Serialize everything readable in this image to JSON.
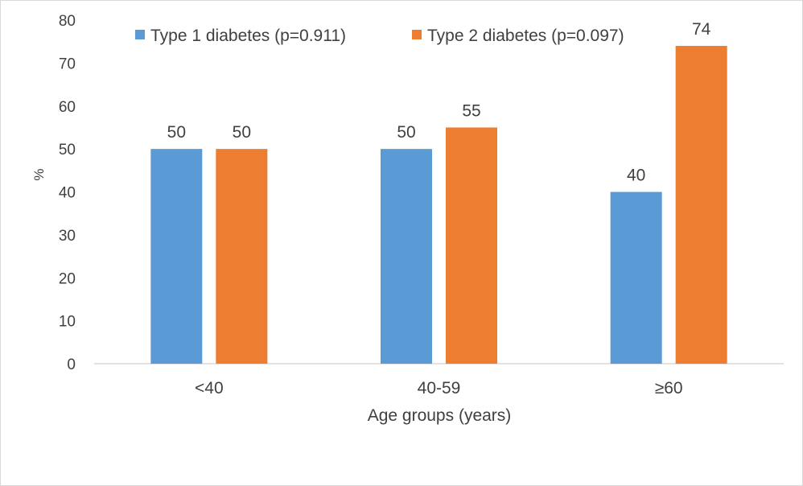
{
  "chart_data": {
    "type": "bar",
    "categories": [
      "<40",
      "40-59",
      "≥60"
    ],
    "series": [
      {
        "name": "Type 1 diabetes (p=0.911)",
        "values": [
          50,
          50,
          40
        ],
        "color": "#5b9bd5"
      },
      {
        "name": "Type 2 diabetes (p=0.097)",
        "values": [
          50,
          55,
          74
        ],
        "color": "#ed7d31"
      }
    ],
    "data_labels": [
      [
        "50",
        "50",
        "40"
      ],
      [
        "50",
        "55",
        "74"
      ]
    ],
    "xlabel": "Age groups (years)",
    "ylabel": "%",
    "ylim": [
      0,
      80
    ],
    "yticks": [
      "0",
      "10",
      "20",
      "30",
      "40",
      "50",
      "60",
      "70",
      "80"
    ],
    "grid": false,
    "legend_position": "top"
  }
}
